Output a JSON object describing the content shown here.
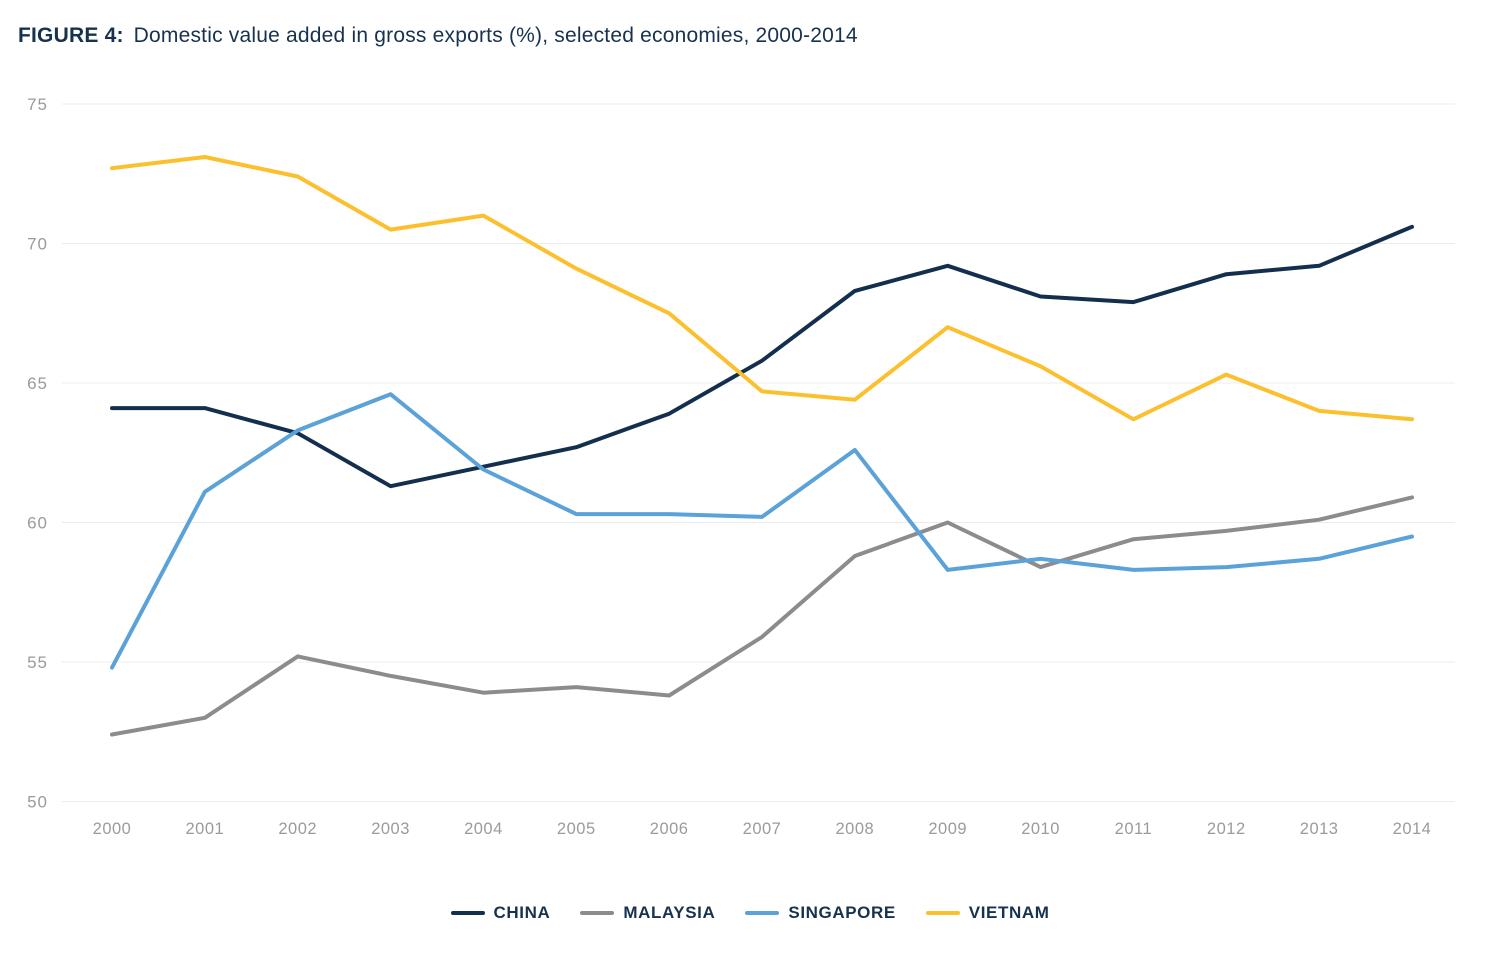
{
  "header": {
    "figure_label": "FIGURE 4:",
    "title": "Domestic value added in gross exports (%), selected economies, 2000-2014"
  },
  "chart_data": {
    "type": "line",
    "title": "Domestic value added in gross exports (%), selected economies, 2000-2014",
    "x": [
      2000,
      2001,
      2002,
      2003,
      2004,
      2005,
      2006,
      2007,
      2008,
      2009,
      2010,
      2011,
      2012,
      2013,
      2014
    ],
    "series": [
      {
        "name": "CHINA",
        "color": "#142F4D",
        "values": [
          64.1,
          64.1,
          63.2,
          61.3,
          62.0,
          62.7,
          63.9,
          65.8,
          68.3,
          69.2,
          68.1,
          67.9,
          68.9,
          69.2,
          70.6
        ]
      },
      {
        "name": "MALAYSIA",
        "color": "#8C8C8C",
        "values": [
          52.4,
          53.0,
          55.2,
          54.5,
          53.9,
          54.1,
          53.8,
          55.9,
          58.8,
          60.0,
          58.4,
          59.4,
          59.7,
          60.1,
          60.9
        ]
      },
      {
        "name": "SINGAPORE",
        "color": "#5BA2D9",
        "values": [
          54.8,
          61.1,
          63.3,
          64.6,
          61.9,
          60.3,
          60.3,
          60.2,
          62.6,
          58.3,
          58.7,
          58.3,
          58.4,
          58.7,
          59.5
        ]
      },
      {
        "name": "VIETNAM",
        "color": "#FCC02F",
        "values": [
          72.7,
          73.1,
          72.4,
          70.5,
          71.0,
          69.1,
          67.5,
          64.7,
          64.4,
          67.0,
          65.6,
          63.7,
          65.3,
          64.0,
          63.7
        ]
      }
    ],
    "ylim": [
      50,
      75
    ],
    "yticks": [
      50,
      55,
      60,
      65,
      70,
      75
    ],
    "xlabel": "",
    "ylabel": "",
    "grid": "horizontal",
    "legend_position": "bottom",
    "style": {
      "grid_color": "#ECECEC",
      "tick_label_color": "#9B9B9B",
      "title_color": "#16324E",
      "background": "#FFFFFF",
      "line_width": 4
    }
  }
}
